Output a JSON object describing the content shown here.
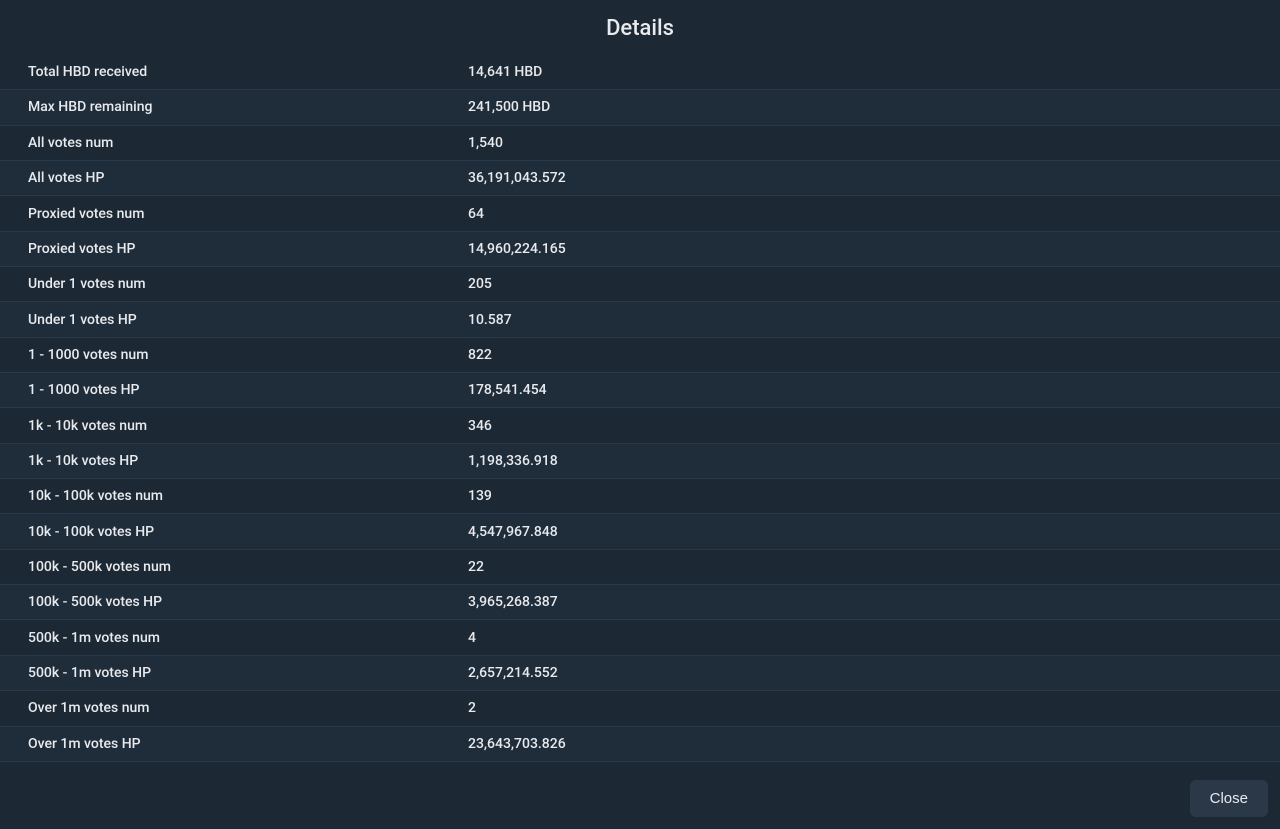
{
  "modal": {
    "title": "Details",
    "close_label": "Close"
  },
  "details": {
    "rows": [
      {
        "label": "Total HBD received",
        "value": "14,641 HBD"
      },
      {
        "label": "Max HBD remaining",
        "value": "241,500 HBD"
      },
      {
        "label": "All votes num",
        "value": "1,540"
      },
      {
        "label": "All votes HP",
        "value": "36,191,043.572"
      },
      {
        "label": "Proxied votes num",
        "value": "64"
      },
      {
        "label": "Proxied votes HP",
        "value": "14,960,224.165"
      },
      {
        "label": "Under 1 votes num",
        "value": "205"
      },
      {
        "label": "Under 1 votes HP",
        "value": "10.587"
      },
      {
        "label": "1 - 1000 votes num",
        "value": "822"
      },
      {
        "label": "1 - 1000 votes HP",
        "value": "178,541.454"
      },
      {
        "label": "1k - 10k votes num",
        "value": "346"
      },
      {
        "label": "1k - 10k votes HP",
        "value": "1,198,336.918"
      },
      {
        "label": "10k - 100k votes num",
        "value": "139"
      },
      {
        "label": "10k - 100k votes HP",
        "value": "4,547,967.848"
      },
      {
        "label": "100k - 500k votes num",
        "value": "22"
      },
      {
        "label": "100k - 500k votes HP",
        "value": "3,965,268.387"
      },
      {
        "label": "500k - 1m votes num",
        "value": "4"
      },
      {
        "label": "500k - 1m votes HP",
        "value": "2,657,214.552"
      },
      {
        "label": "Over 1m votes num",
        "value": "2"
      },
      {
        "label": "Over 1m votes HP",
        "value": "23,643,703.826"
      }
    ]
  },
  "styling": {
    "background_color": "#1c2833",
    "row_alt_color": "#1f2c3a",
    "border_color": "#2b3847",
    "text_color": "#e8eaed",
    "button_bg": "#2b3847",
    "title_fontsize": 22,
    "cell_fontsize": 14,
    "button_fontsize": 15
  }
}
